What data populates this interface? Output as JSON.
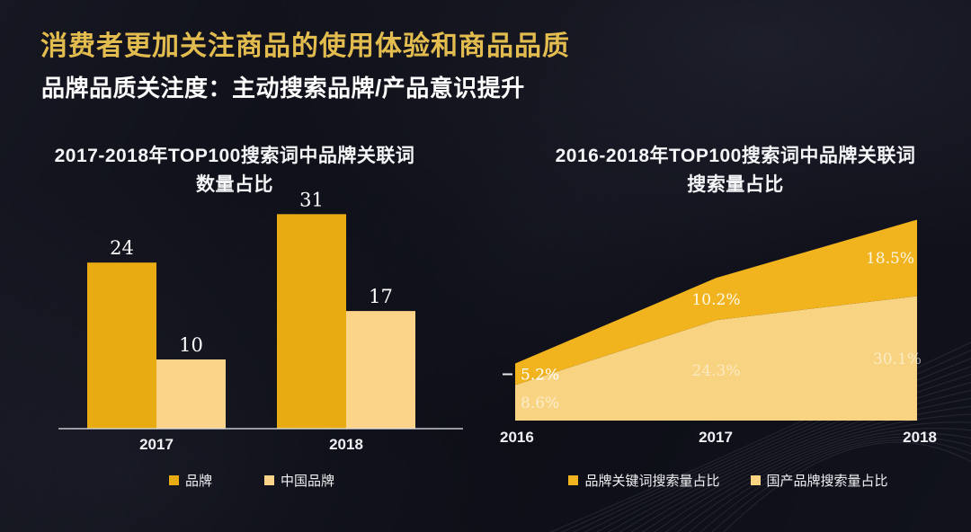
{
  "slide": {
    "title": "消费者更加关注商品的使用体验和商品品质",
    "subtitle": "品牌品质关注度：主动搜索品牌/产品意识提升"
  },
  "colors": {
    "title_gold": "#E3BC4F",
    "bar_gold": "#E8AC12",
    "bar_cream": "#FBD489",
    "area_gold": "#F1B41F",
    "area_cream": "#F8D381",
    "axis_line": "#D9DCE3",
    "label_white": "#FFFFFF",
    "background": "#0E0F18"
  },
  "chart_data": [
    {
      "id": "brand-keyword-count-bar",
      "type": "bar",
      "title_line1": "2017-2018年TOP100搜索词中品牌关联词",
      "title_line2": "数量占比",
      "categories": [
        "2017",
        "2018"
      ],
      "series": [
        {
          "name": "品牌",
          "color_key": "bar_gold",
          "values": [
            24,
            31
          ]
        },
        {
          "name": "中国品牌",
          "color_key": "bar_cream",
          "values": [
            10,
            17
          ]
        }
      ],
      "ylim": [
        0,
        34
      ],
      "grid": false,
      "legend_position": "bottom"
    },
    {
      "id": "brand-keyword-volume-area",
      "type": "area",
      "stacked": true,
      "title_line1": "2016-2018年TOP100搜索词中品牌关联词",
      "title_line2": "搜索量占比",
      "x": [
        "2016",
        "2017",
        "2018"
      ],
      "series": [
        {
          "name": "国产品牌搜索量占比",
          "color_key": "area_cream",
          "values": [
            8.6,
            24.3,
            30.1
          ],
          "labels": [
            "8.6%",
            "24.3%",
            "30.1%"
          ]
        },
        {
          "name": "品牌关键词搜索量占比",
          "color_key": "area_gold",
          "values": [
            5.2,
            10.2,
            18.5
          ],
          "labels": [
            "5.2%",
            "10.2%",
            "18.5%"
          ]
        }
      ],
      "ylim": [
        0,
        50
      ],
      "grid": false,
      "legend_position": "bottom"
    }
  ]
}
